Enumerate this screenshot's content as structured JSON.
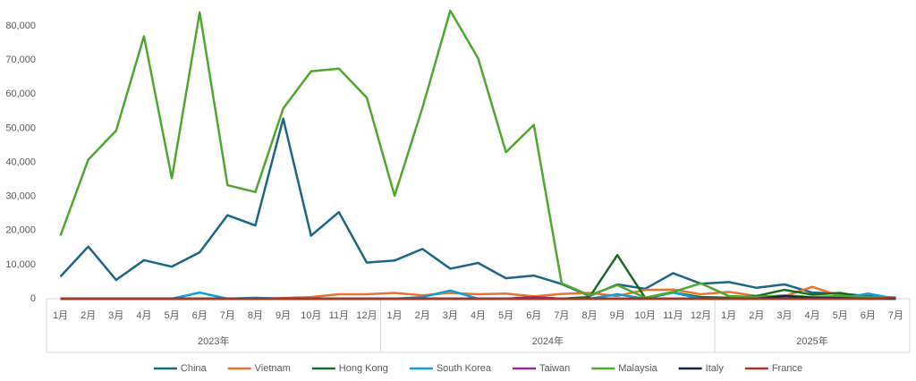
{
  "chart_data": {
    "type": "line",
    "categories": [
      "1月",
      "2月",
      "3月",
      "4月",
      "5月",
      "6月",
      "7月",
      "8月",
      "9月",
      "10月",
      "11月",
      "12月",
      "1月",
      "2月",
      "3月",
      "4月",
      "5月",
      "6月",
      "7月",
      "8月",
      "9月",
      "10月",
      "11月",
      "12月",
      "1月",
      "2月",
      "3月",
      "4月",
      "5月",
      "6月",
      "7月"
    ],
    "category_groups": [
      {
        "label": "2023年",
        "count": 12
      },
      {
        "label": "2024年",
        "count": 12
      },
      {
        "label": "2025年",
        "count": 7
      }
    ],
    "ylim": [
      0,
      85000
    ],
    "yticks": [
      0,
      {
        "value": 10000,
        "label": "10,000"
      },
      {
        "value": 20000,
        "label": "20,000"
      },
      {
        "value": 30000,
        "label": "30,000"
      },
      {
        "value": 40000,
        "label": "40,000"
      },
      {
        "value": 50000,
        "label": "50,000"
      },
      {
        "value": 60000,
        "label": "60,000"
      },
      {
        "value": 70000,
        "label": "70,000"
      },
      {
        "value": 80000,
        "label": "80,000"
      }
    ],
    "grid": false,
    "legend": "bottom",
    "series": [
      {
        "name": "China",
        "color": "#1d6584",
        "values": [
          6500,
          15300,
          5500,
          11300,
          9400,
          13600,
          24500,
          21500,
          52800,
          18500,
          25400,
          10600,
          11200,
          14600,
          8800,
          10500,
          6000,
          6800,
          4300,
          800,
          4200,
          2900,
          7500,
          4400,
          4900,
          3200,
          4200,
          1800,
          1500,
          800,
          300
        ]
      },
      {
        "name": "Vietnam",
        "color": "#e97132",
        "values": [
          0,
          0,
          0,
          0,
          0,
          0,
          0,
          0,
          200,
          500,
          1300,
          1300,
          1700,
          1000,
          1700,
          1300,
          1500,
          700,
          1400,
          1700,
          800,
          2600,
          2700,
          1300,
          2000,
          800,
          700,
          3500,
          800,
          500,
          200
        ]
      },
      {
        "name": "Hong Kong",
        "color": "#196b24",
        "values": [
          0,
          0,
          0,
          0,
          0,
          0,
          0,
          0,
          0,
          0,
          0,
          0,
          0,
          0,
          0,
          0,
          0,
          0,
          0,
          500,
          12800,
          200,
          1800,
          500,
          300,
          800,
          2600,
          1200,
          1700,
          300,
          200
        ]
      },
      {
        "name": "South Korea",
        "color": "#0f9ed5",
        "values": [
          0,
          0,
          0,
          0,
          0,
          1800,
          0,
          300,
          0,
          0,
          0,
          0,
          0,
          500,
          2400,
          0,
          0,
          0,
          0,
          0,
          1300,
          0,
          1800,
          0,
          0,
          0,
          0,
          0,
          0,
          1500,
          0
        ]
      },
      {
        "name": "Taiwan",
        "color": "#a02b93",
        "values": [
          0,
          0,
          0,
          0,
          0,
          0,
          0,
          0,
          0,
          0,
          0,
          0,
          0,
          0,
          0,
          0,
          0,
          500,
          0,
          0,
          0,
          0,
          0,
          0,
          0,
          0,
          0,
          0,
          0,
          0,
          0
        ]
      },
      {
        "name": "Malaysia",
        "color": "#4ea72e",
        "values": [
          18500,
          40800,
          49300,
          77000,
          35300,
          84000,
          33300,
          31300,
          55800,
          66700,
          67500,
          59000,
          30200,
          56000,
          84500,
          70500,
          43000,
          51000,
          4500,
          1000,
          4000,
          300,
          2000,
          4500,
          800,
          500,
          1000,
          500,
          800,
          500,
          200
        ]
      },
      {
        "name": "Italy",
        "color": "#0e2841",
        "values": [
          0,
          0,
          0,
          0,
          0,
          0,
          0,
          0,
          0,
          0,
          0,
          0,
          0,
          0,
          0,
          0,
          0,
          0,
          0,
          0,
          0,
          0,
          0,
          0,
          0,
          0,
          800,
          300,
          200,
          0,
          0
        ]
      },
      {
        "name": "France",
        "color": "#a5391e",
        "values": [
          0,
          0,
          0,
          0,
          0,
          0,
          0,
          0,
          0,
          0,
          0,
          0,
          0,
          0,
          0,
          0,
          0,
          0,
          0,
          0,
          0,
          0,
          0,
          0,
          0,
          0,
          0,
          0,
          0,
          0,
          300
        ]
      }
    ]
  }
}
